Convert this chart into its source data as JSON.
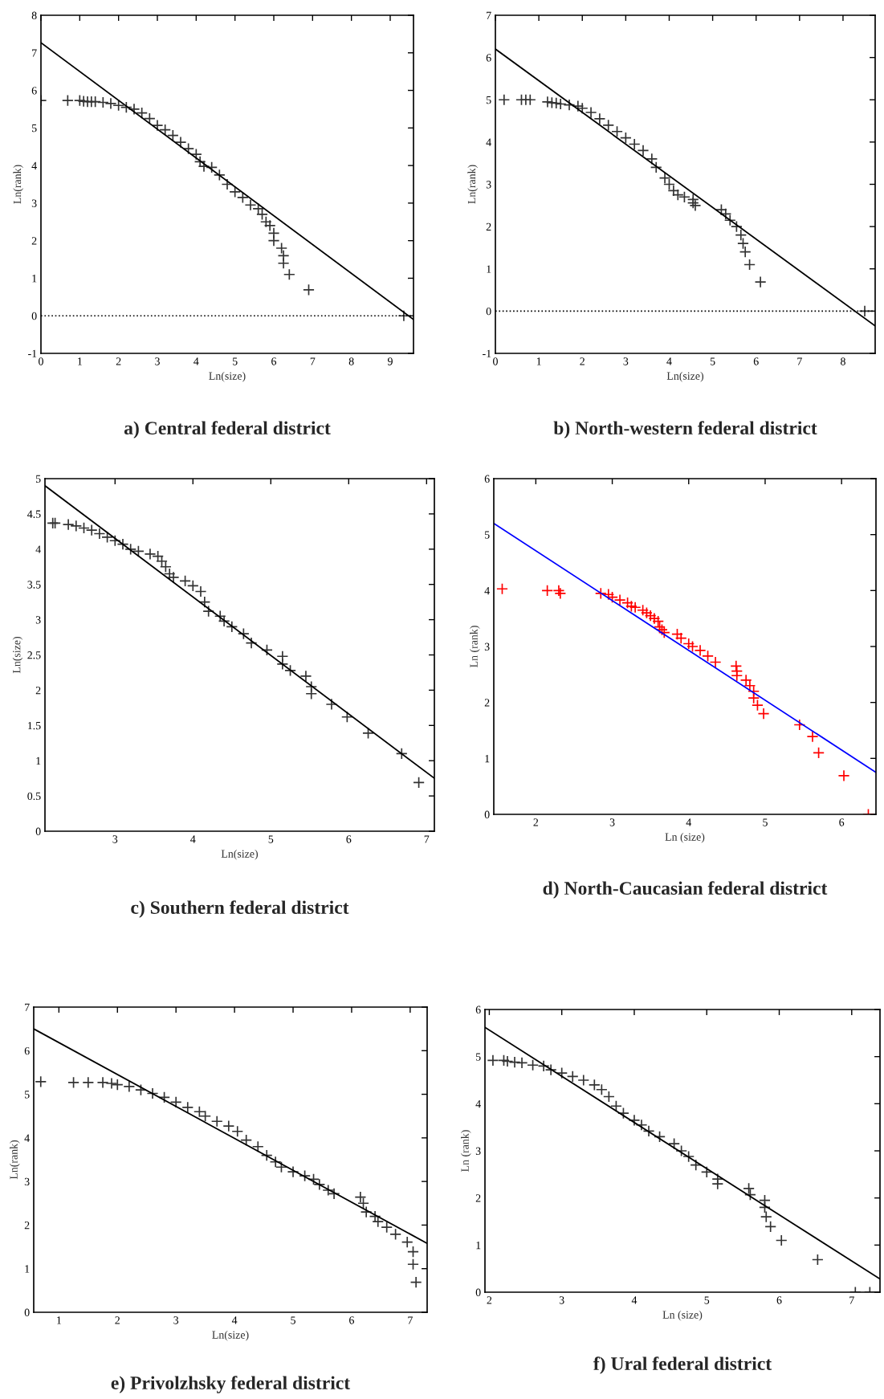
{
  "chart_data": [
    {
      "type": "scatter",
      "title": "a) Central federal district",
      "xlabel": "Ln(size)",
      "ylabel": "Ln(rank)",
      "xlim": [
        0,
        9.6
      ],
      "ylim": [
        -1,
        8
      ],
      "xticks": [
        0,
        1,
        2,
        3,
        4,
        5,
        6,
        7,
        8,
        9
      ],
      "yticks": [
        -1,
        0,
        1,
        2,
        3,
        4,
        5,
        6,
        7,
        8
      ],
      "grid": false,
      "ref_lines": [
        {
          "axis": "y",
          "value": 0,
          "color": "#000000",
          "line_style": "dotted"
        }
      ],
      "series": [
        {
          "type": "scatter",
          "color": "#333333",
          "marker": "cross",
          "x": [
            0.0,
            0.69,
            1.0,
            1.1,
            1.2,
            1.3,
            1.4,
            1.6,
            1.8,
            2.0,
            2.2,
            2.4,
            2.6,
            2.8,
            3.0,
            3.2,
            3.4,
            3.6,
            3.8,
            4.0,
            4.1,
            4.2,
            4.4,
            4.6,
            4.8,
            5.0,
            5.2,
            5.4,
            5.6,
            5.7,
            5.8,
            5.9,
            6.0,
            6.0,
            6.2,
            6.25,
            6.25,
            6.4,
            6.9,
            9.35
          ],
          "values": [
            5.73,
            5.73,
            5.73,
            5.71,
            5.7,
            5.7,
            5.7,
            5.68,
            5.65,
            5.6,
            5.55,
            5.5,
            5.4,
            5.25,
            5.07,
            4.95,
            4.8,
            4.62,
            4.45,
            4.3,
            4.1,
            3.98,
            3.95,
            3.75,
            3.5,
            3.3,
            3.15,
            2.95,
            2.85,
            2.7,
            2.5,
            2.4,
            2.2,
            2.0,
            1.8,
            1.6,
            1.4,
            1.1,
            0.69,
            0
          ]
        },
        {
          "type": "line",
          "color": "#000000",
          "marker": "none",
          "line_style": "solid",
          "x": [
            0,
            9.6
          ],
          "values": [
            7.27,
            -0.1
          ]
        }
      ]
    },
    {
      "type": "scatter",
      "title": "b) North-western federal district",
      "xlabel": "Ln(size)",
      "ylabel": "Ln(rank)",
      "xlim": [
        0,
        8.74
      ],
      "ylim": [
        -1,
        7
      ],
      "xticks": [
        0,
        1,
        2,
        3,
        4,
        5,
        6,
        7,
        8
      ],
      "yticks": [
        -1,
        0,
        1,
        2,
        3,
        4,
        5,
        6,
        7
      ],
      "grid": false,
      "ref_lines": [
        {
          "axis": "y",
          "value": 0,
          "color": "#000000",
          "line_style": "dotted"
        }
      ],
      "series": [
        {
          "type": "scatter",
          "color": "#333333",
          "marker": "cross",
          "x": [
            0.2,
            0.6,
            0.7,
            0.8,
            1.2,
            1.3,
            1.4,
            1.5,
            1.7,
            1.9,
            2.0,
            2.2,
            2.4,
            2.6,
            2.8,
            3.0,
            3.2,
            3.4,
            3.6,
            3.7,
            3.9,
            4.0,
            4.1,
            4.2,
            4.35,
            4.55,
            4.55,
            4.6,
            5.2,
            5.3,
            5.4,
            5.55,
            5.65,
            5.7,
            5.75,
            5.85,
            6.1,
            8.5
          ],
          "values": [
            5,
            5,
            5,
            5,
            4.95,
            4.93,
            4.92,
            4.9,
            4.88,
            4.85,
            4.8,
            4.7,
            4.55,
            4.4,
            4.25,
            4.1,
            3.95,
            3.8,
            3.6,
            3.4,
            3.15,
            3.0,
            2.85,
            2.75,
            2.7,
            2.64,
            2.56,
            2.5,
            2.4,
            2.3,
            2.15,
            2.0,
            1.8,
            1.6,
            1.4,
            1.1,
            0.69,
            0
          ]
        },
        {
          "type": "line",
          "color": "#000000",
          "marker": "none",
          "line_style": "solid",
          "x": [
            0,
            8.74
          ],
          "values": [
            6.2,
            -0.35
          ]
        }
      ]
    },
    {
      "type": "scatter",
      "title": "c) Southern federal district",
      "xlabel": "Ln(size)",
      "ylabel": "Ln(size)",
      "xlim": [
        2.1,
        7.1
      ],
      "ylim": [
        0,
        5
      ],
      "xticks": [
        3,
        4,
        5,
        6,
        7
      ],
      "yticks": [
        0,
        0.5,
        1,
        1.5,
        2,
        2.5,
        3,
        3.5,
        4,
        4.5,
        5
      ],
      "grid": false,
      "series": [
        {
          "type": "scatter",
          "color": "#333333",
          "marker": "cross",
          "x": [
            2.2,
            2.23,
            2.4,
            2.5,
            2.6,
            2.7,
            2.8,
            2.9,
            3.0,
            3.1,
            3.2,
            3.3,
            3.45,
            3.55,
            3.6,
            3.65,
            3.7,
            3.75,
            3.9,
            4.0,
            4.1,
            4.15,
            4.2,
            4.35,
            4.4,
            4.5,
            4.65,
            4.75,
            4.95,
            5.15,
            5.15,
            5.25,
            5.45,
            5.52,
            5.52,
            5.78,
            5.98,
            6.25,
            6.68,
            6.9
          ],
          "values": [
            4.37,
            4.37,
            4.35,
            4.33,
            4.3,
            4.27,
            4.22,
            4.17,
            4.12,
            4.07,
            4.0,
            3.97,
            3.93,
            3.9,
            3.83,
            3.75,
            3.65,
            3.6,
            3.55,
            3.48,
            3.4,
            3.25,
            3.12,
            3.05,
            2.98,
            2.9,
            2.8,
            2.67,
            2.57,
            2.48,
            2.37,
            2.28,
            2.2,
            2.05,
            1.95,
            1.8,
            1.62,
            1.39,
            1.1,
            0.69
          ]
        },
        {
          "type": "line",
          "color": "#000000",
          "marker": "none",
          "line_style": "solid",
          "x": [
            2.1,
            7.1
          ],
          "values": [
            4.9,
            0.75
          ]
        }
      ]
    },
    {
      "type": "scatter",
      "title": "d) North-Caucasian federal district",
      "xlabel": "Ln (size)",
      "ylabel": "Ln (rank)",
      "xlim": [
        1.45,
        6.45
      ],
      "ylim": [
        0,
        6
      ],
      "xticks": [
        2,
        3,
        4,
        5,
        6
      ],
      "yticks": [
        0,
        1,
        2,
        3,
        4,
        5,
        6
      ],
      "grid": false,
      "series": [
        {
          "type": "scatter",
          "color": "#ff0000",
          "marker": "cross",
          "x": [
            1.56,
            2.15,
            2.3,
            2.32,
            2.85,
            2.95,
            3.0,
            3.1,
            3.2,
            3.25,
            3.3,
            3.4,
            3.45,
            3.5,
            3.55,
            3.6,
            3.62,
            3.65,
            3.68,
            3.85,
            3.9,
            4.0,
            4.05,
            4.15,
            4.25,
            4.35,
            4.62,
            4.63,
            4.63,
            4.75,
            4.8,
            4.85,
            4.85,
            4.9,
            4.98,
            5.45,
            5.62,
            5.7,
            6.03,
            6.35
          ],
          "values": [
            4.03,
            4.0,
            4.0,
            3.95,
            3.95,
            3.93,
            3.88,
            3.83,
            3.78,
            3.72,
            3.7,
            3.65,
            3.6,
            3.55,
            3.5,
            3.45,
            3.35,
            3.3,
            3.25,
            3.22,
            3.15,
            3.05,
            3.0,
            2.93,
            2.83,
            2.72,
            2.65,
            2.56,
            2.48,
            2.4,
            2.3,
            2.2,
            2.08,
            1.95,
            1.8,
            1.6,
            1.39,
            1.1,
            0.69,
            0
          ]
        },
        {
          "type": "line",
          "color": "#0000ff",
          "marker": "none",
          "line_style": "solid",
          "x": [
            1.45,
            6.45
          ],
          "values": [
            5.2,
            0.75
          ]
        }
      ]
    },
    {
      "type": "scatter",
      "title": "e) Privolzhsky federal district",
      "xlabel": "Ln(size)",
      "ylabel": "Ln(rank)",
      "xlim": [
        0.57,
        7.29
      ],
      "ylim": [
        0,
        7
      ],
      "xticks": [
        1,
        2,
        3,
        4,
        5,
        6,
        7
      ],
      "yticks": [
        0,
        1,
        2,
        3,
        4,
        5,
        6,
        7
      ],
      "grid": false,
      "series": [
        {
          "type": "scatter",
          "color": "#333333",
          "marker": "cross",
          "x": [
            0.69,
            1.25,
            1.5,
            1.75,
            1.9,
            2.0,
            2.2,
            2.4,
            2.6,
            2.8,
            3.0,
            3.2,
            3.4,
            3.5,
            3.7,
            3.9,
            4.05,
            4.2,
            4.4,
            4.55,
            4.7,
            4.8,
            5.0,
            5.2,
            5.35,
            5.45,
            5.6,
            5.7,
            6.15,
            6.2,
            6.25,
            6.4,
            6.45,
            6.6,
            6.75,
            6.95,
            7.05,
            7.05,
            7.1
          ],
          "values": [
            5.29,
            5.27,
            5.27,
            5.27,
            5.25,
            5.22,
            5.18,
            5.1,
            5.02,
            4.93,
            4.82,
            4.7,
            4.6,
            4.5,
            4.38,
            4.27,
            4.15,
            3.95,
            3.8,
            3.6,
            3.45,
            3.33,
            3.22,
            3.13,
            3.05,
            2.93,
            2.8,
            2.72,
            2.64,
            2.5,
            2.3,
            2.2,
            2.08,
            1.95,
            1.79,
            1.61,
            1.39,
            1.1,
            0.69
          ]
        },
        {
          "type": "line",
          "color": "#000000",
          "marker": "none",
          "line_style": "solid",
          "x": [
            0.57,
            7.29
          ],
          "values": [
            6.5,
            1.58
          ]
        }
      ]
    },
    {
      "type": "scatter",
      "title": "f) Ural federal district",
      "xlabel": "Ln (size)",
      "ylabel": "Ln (rank)",
      "xlim": [
        1.94,
        7.39
      ],
      "ylim": [
        0,
        6
      ],
      "xticks": [
        2,
        3,
        4,
        5,
        6,
        7
      ],
      "yticks": [
        0,
        1,
        2,
        3,
        4,
        5,
        6
      ],
      "grid": false,
      "series": [
        {
          "type": "scatter",
          "color": "#333333",
          "marker": "cross",
          "x": [
            2.05,
            2.2,
            2.25,
            2.35,
            2.45,
            2.6,
            2.75,
            2.85,
            3.0,
            3.15,
            3.3,
            3.45,
            3.55,
            3.65,
            3.75,
            3.85,
            4.0,
            4.1,
            4.2,
            4.35,
            4.55,
            4.65,
            4.75,
            4.85,
            5.0,
            5.15,
            5.15,
            5.58,
            5.6,
            5.8,
            5.8,
            5.82,
            5.88,
            6.03,
            6.53,
            7.05,
            7.25
          ],
          "values": [
            4.92,
            4.92,
            4.9,
            4.88,
            4.87,
            4.82,
            4.8,
            4.72,
            4.65,
            4.58,
            4.5,
            4.4,
            4.3,
            4.15,
            3.95,
            3.8,
            3.65,
            3.55,
            3.42,
            3.3,
            3.15,
            3.0,
            2.88,
            2.7,
            2.55,
            2.4,
            2.3,
            2.2,
            2.07,
            1.95,
            1.8,
            1.6,
            1.39,
            1.1,
            0.69,
            0,
            0
          ]
        },
        {
          "type": "line",
          "color": "#000000",
          "marker": "none",
          "line_style": "solid",
          "x": [
            1.94,
            7.39
          ],
          "values": [
            5.62,
            0.28
          ]
        }
      ]
    }
  ]
}
